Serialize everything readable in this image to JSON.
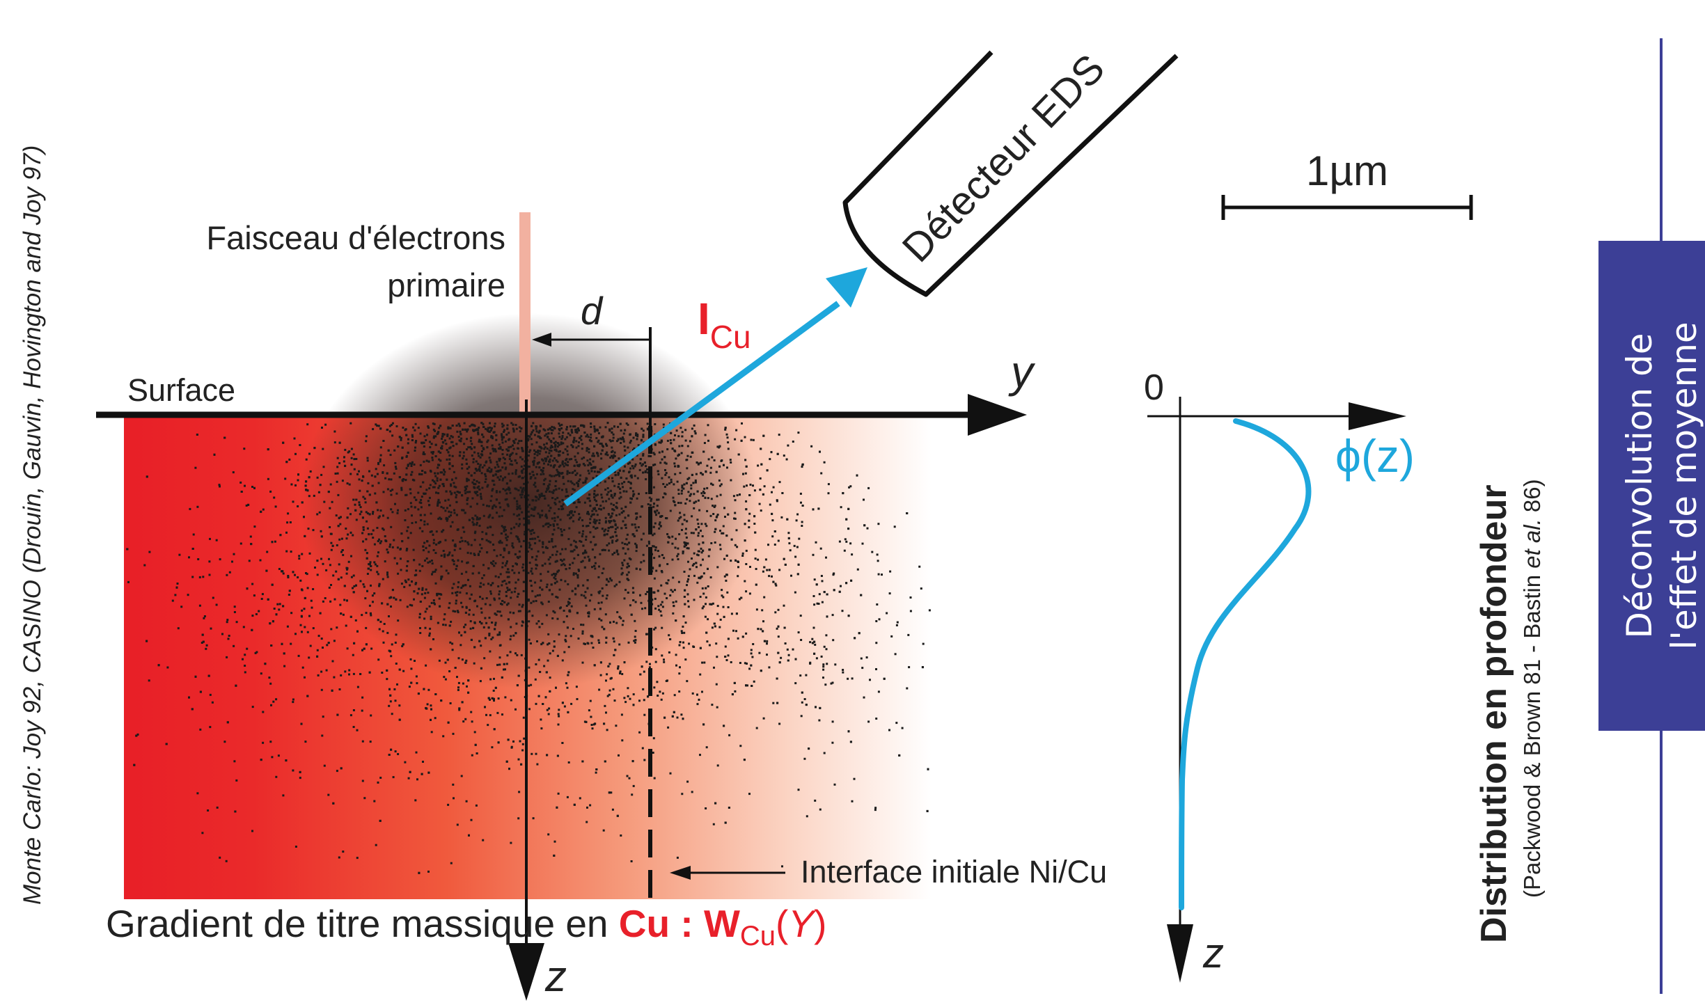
{
  "credit": {
    "text": "Monte Carlo: Joy 92, CASINO (Drouin, Gauvin, Hovington and Joy 97)"
  },
  "beam": {
    "label_line1": "Faisceau d'électrons",
    "label_line2": "primaire"
  },
  "surface_label": "Surface",
  "axis_y_label": "y",
  "axis_z_label": "z",
  "distance_label": "d",
  "detector": {
    "label": "Détecteur EDS"
  },
  "intensity": {
    "symbol": "I",
    "subscript": "Cu"
  },
  "scale_bar": {
    "label": "1µm"
  },
  "interface_label": "Interface initiale Ni/Cu",
  "gradient": {
    "prefix": "Gradient de titre massique en ",
    "element": "Cu : ",
    "w_symbol": "W",
    "w_subscript": "Cu",
    "paren_open": "(",
    "variable": "Y",
    "paren_close": ")"
  },
  "phi_plot": {
    "origin_label": "0",
    "curve_label": "ϕ(z)",
    "z_label": "z"
  },
  "distribution": {
    "title": "Distribution en profondeur",
    "ref_prefix": "(Packwood & Brown 81 - Bastin ",
    "ref_italic": "et al.",
    "ref_suffix": " 86)"
  },
  "side_panel": {
    "line1": "Déconvolution de",
    "line2": "l'effet de moyenne"
  },
  "colors": {
    "red": "#e8202a",
    "cyan": "#1ea7dc",
    "beam": "#f2b1a0",
    "panel": "#3c3f96",
    "panel_line": "#3c3f96"
  }
}
